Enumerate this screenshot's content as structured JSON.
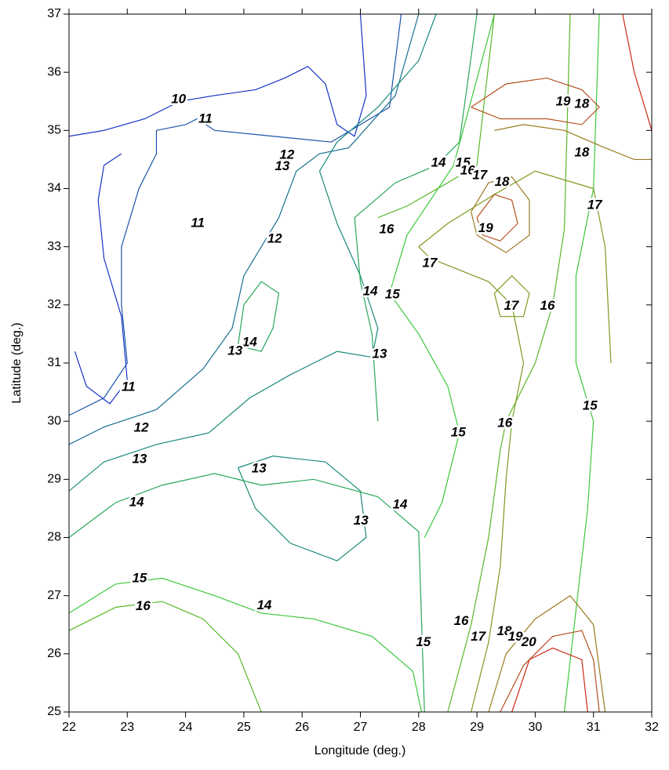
{
  "chart_data": {
    "type": "contour",
    "x_label": "Longitude (deg.)",
    "y_label": "Latitude (deg.)",
    "xlim": [
      22,
      32
    ],
    "ylim": [
      25,
      37
    ],
    "xticks": [
      22,
      23,
      24,
      25,
      26,
      27,
      28,
      29,
      30,
      31,
      32
    ],
    "yticks": [
      25,
      26,
      27,
      28,
      29,
      30,
      31,
      32,
      33,
      34,
      35,
      36,
      37
    ],
    "contours": [
      {
        "level": 10,
        "color": "#1833c4",
        "x": [
          22,
          22.6,
          23.3,
          23.9,
          24.5,
          25.2,
          25.7,
          26.1,
          26.4,
          26.6,
          26.9,
          27.1,
          27.0
        ],
        "y": [
          34.9,
          35.0,
          35.2,
          35.5,
          35.6,
          35.7,
          35.9,
          36.1,
          35.8,
          35.1,
          34.9,
          35.6,
          37
        ]
      },
      {
        "level": 10,
        "color": "#1833c4",
        "x": [
          22.1,
          22.3,
          22.7,
          23.0,
          22.9,
          22.6,
          22.5,
          22.6,
          22.9
        ],
        "y": [
          31.2,
          30.6,
          30.3,
          30.7,
          31.8,
          32.8,
          33.8,
          34.4,
          34.6
        ]
      },
      {
        "level": 11,
        "color": "#1a55ad",
        "x": [
          22,
          22.6,
          23.0,
          22.9,
          22.9,
          23.2,
          23.5,
          23.5,
          24.0,
          24.2,
          24.5,
          25.5,
          26.5,
          27.5,
          27.7
        ],
        "y": [
          30.1,
          30.4,
          31.0,
          32.0,
          33.0,
          34.0,
          34.6,
          35.0,
          35.1,
          35.2,
          35.0,
          34.9,
          34.8,
          35.4,
          37
        ]
      },
      {
        "level": 12,
        "color": "#1a7094",
        "x": [
          22,
          22.6,
          23.5,
          24.3,
          24.8,
          25.0,
          25.3,
          25.6,
          25.9,
          26.3,
          26.8,
          27.6,
          28.0
        ],
        "y": [
          29.6,
          29.9,
          30.2,
          30.9,
          31.6,
          32.5,
          33.0,
          33.5,
          34.3,
          34.6,
          34.7,
          35.6,
          37
        ]
      },
      {
        "level": 13,
        "color": "#1a8a7a",
        "x": [
          22,
          22.6,
          23.5,
          24.4,
          25.1,
          25.8,
          26.6,
          27.2,
          27.3,
          27.0,
          26.6,
          26.3,
          26.6,
          27.3,
          28.0,
          28.3
        ],
        "y": [
          28.8,
          29.3,
          29.6,
          29.8,
          30.4,
          30.8,
          31.2,
          31.1,
          31.6,
          32.5,
          33.4,
          34.3,
          34.8,
          35.4,
          36.2,
          37
        ]
      },
      {
        "level": 13,
        "color": "#1a8a7a",
        "x": [
          24.9,
          25.5,
          26.4,
          27.0,
          27.1,
          26.6,
          25.8,
          25.2,
          24.9
        ],
        "y": [
          29.2,
          29.4,
          29.3,
          28.8,
          28.0,
          27.6,
          27.9,
          28.5,
          29.2
        ]
      },
      {
        "level": 14,
        "color": "#28a85a",
        "x": [
          22,
          22.8,
          23.6,
          24.5,
          25.3,
          26.2,
          27.3,
          28.0,
          28.1
        ],
        "y": [
          28.0,
          28.6,
          28.9,
          29.1,
          28.9,
          29.0,
          28.7,
          28.1,
          25.0
        ]
      },
      {
        "level": 14,
        "color": "#28a85a",
        "x": [
          27.3,
          27.2,
          27.0,
          26.9,
          27.6,
          28.3,
          28.7,
          29.0
        ],
        "y": [
          30.0,
          31.5,
          32.4,
          33.5,
          34.1,
          34.4,
          34.8,
          37
        ]
      },
      {
        "level": 14,
        "color": "#28a85a",
        "x": [
          24.9,
          25.3,
          25.5,
          25.6,
          25.3,
          25.0,
          24.9
        ],
        "y": [
          31.3,
          31.2,
          31.6,
          32.2,
          32.4,
          32.0,
          31.3
        ]
      },
      {
        "level": 15,
        "color": "#3cc83c",
        "x": [
          22,
          22.8,
          23.6,
          24.5,
          25.3,
          26.2,
          27.2,
          27.9,
          28.05
        ],
        "y": [
          26.7,
          27.2,
          27.3,
          27.0,
          26.7,
          26.6,
          26.3,
          25.7,
          25.0
        ]
      },
      {
        "level": 15,
        "color": "#3cc83c",
        "x": [
          28.1,
          28.4,
          28.7,
          28.5,
          28.0,
          27.5,
          27.8,
          28.6,
          29.3
        ],
        "y": [
          28.0,
          28.6,
          29.8,
          30.6,
          31.5,
          32.2,
          33.2,
          34.4,
          37
        ]
      },
      {
        "level": 15,
        "color": "#3cc83c",
        "x": [
          30.5,
          30.9,
          31.0,
          30.7,
          30.7,
          31.0,
          31.1
        ],
        "y": [
          25.0,
          28.5,
          30.0,
          31.0,
          32.5,
          34.0,
          37
        ]
      },
      {
        "level": 16,
        "color": "#5ab828",
        "x": [
          22,
          22.8,
          23.6,
          24.3,
          24.9,
          25.3
        ],
        "y": [
          26.4,
          26.8,
          26.9,
          26.6,
          26.0,
          25.0
        ]
      },
      {
        "level": 16,
        "color": "#5ab828",
        "x": [
          28.5,
          28.9,
          29.2,
          29.4,
          29.5,
          30.0,
          30.3,
          30.5,
          30.6
        ],
        "y": [
          25.0,
          26.5,
          28.0,
          29.5,
          30.0,
          31.0,
          32.0,
          33.3,
          37
        ]
      },
      {
        "level": 16,
        "color": "#5ab828",
        "x": [
          27.3,
          27.8,
          28.5,
          29.0,
          29.3
        ],
        "y": [
          33.5,
          33.7,
          34.1,
          34.4,
          37
        ]
      },
      {
        "level": 17,
        "color": "#7a9a1e",
        "x": [
          28.9,
          29.2,
          29.4,
          29.5,
          29.6,
          29.8,
          29.6,
          29.2,
          28.7,
          28.2,
          28.0,
          28.5,
          29.3,
          30.0,
          31.0,
          31.2,
          31.3
        ],
        "y": [
          25.0,
          26.2,
          27.5,
          29.0,
          30.0,
          31.0,
          32.0,
          32.4,
          32.6,
          32.8,
          33.0,
          33.4,
          33.9,
          34.3,
          34.0,
          33.0,
          31.0
        ]
      },
      {
        "level": 17,
        "color": "#7a9a1e",
        "x": [
          29.4,
          29.8,
          29.9,
          29.6,
          29.3,
          29.4
        ],
        "y": [
          31.8,
          31.8,
          32.2,
          32.5,
          32.2,
          31.8
        ]
      },
      {
        "level": 18,
        "color": "#9a7a1e",
        "x": [
          28.9,
          29.2,
          29.6,
          29.9,
          29.9,
          29.5,
          29.0,
          28.9
        ],
        "y": [
          33.6,
          34.1,
          34.2,
          33.8,
          33.2,
          32.9,
          33.2,
          33.6
        ]
      },
      {
        "level": 18,
        "color": "#9a7a1e",
        "x": [
          29.3,
          29.8,
          30.5,
          31.2,
          31.7,
          32.0
        ],
        "y": [
          35.0,
          35.1,
          35.0,
          34.7,
          34.5,
          34.5
        ]
      },
      {
        "level": 18,
        "color": "#9a7a1e",
        "x": [
          29.2,
          29.5,
          30.0,
          30.6,
          31.0,
          31.2
        ],
        "y": [
          25.0,
          26.0,
          26.6,
          27.0,
          26.5,
          25.0
        ]
      },
      {
        "level": 19,
        "color": "#b4501e",
        "x": [
          29.0,
          29.3,
          29.6,
          29.7,
          29.4,
          29.1,
          29.0
        ],
        "y": [
          33.5,
          33.9,
          33.8,
          33.4,
          33.1,
          33.2,
          33.5
        ]
      },
      {
        "level": 19,
        "color": "#b4501e",
        "x": [
          28.9,
          29.5,
          30.2,
          30.8,
          31.1,
          30.8,
          30.2,
          29.4,
          28.9
        ],
        "y": [
          35.4,
          35.8,
          35.9,
          35.7,
          35.4,
          35.1,
          35.2,
          35.2,
          35.4
        ]
      },
      {
        "level": 19,
        "color": "#b4501e",
        "x": [
          29.4,
          29.8,
          30.3,
          30.8,
          31.0,
          31.1
        ],
        "y": [
          25.0,
          25.8,
          26.3,
          26.4,
          25.9,
          25.0
        ]
      },
      {
        "level": 20,
        "color": "#cc2a14",
        "x": [
          29.6,
          29.9,
          30.3,
          30.8,
          30.9
        ],
        "y": [
          25.0,
          25.9,
          26.1,
          25.9,
          25.0
        ]
      },
      {
        "level": 20,
        "color": "#cc2a14",
        "x": [
          31.5,
          31.7,
          32.0
        ],
        "y": [
          37,
          36.0,
          35.0
        ]
      }
    ],
    "contour_labels": [
      {
        "level": 10,
        "x": 23.88,
        "y": 35.53
      },
      {
        "level": 11,
        "x": 24.34,
        "y": 35.19
      },
      {
        "level": 12,
        "x": 25.74,
        "y": 34.57
      },
      {
        "level": 13,
        "x": 25.66,
        "y": 34.38
      },
      {
        "level": 11,
        "x": 24.21,
        "y": 33.4
      },
      {
        "level": 12,
        "x": 25.53,
        "y": 33.13
      },
      {
        "level": 14,
        "x": 28.34,
        "y": 34.44
      },
      {
        "level": 15,
        "x": 28.76,
        "y": 34.44
      },
      {
        "level": 16,
        "x": 28.84,
        "y": 34.3
      },
      {
        "level": 17,
        "x": 29.05,
        "y": 34.22
      },
      {
        "level": 18,
        "x": 29.43,
        "y": 34.11
      },
      {
        "level": 19,
        "x": 30.48,
        "y": 35.49
      },
      {
        "level": 18,
        "x": 30.8,
        "y": 35.45
      },
      {
        "level": 18,
        "x": 30.8,
        "y": 34.61
      },
      {
        "level": 17,
        "x": 31.02,
        "y": 33.71
      },
      {
        "level": 16,
        "x": 27.45,
        "y": 33.29
      },
      {
        "level": 19,
        "x": 29.15,
        "y": 33.31
      },
      {
        "level": 17,
        "x": 28.19,
        "y": 32.71
      },
      {
        "level": 14,
        "x": 27.17,
        "y": 32.23
      },
      {
        "level": 15,
        "x": 27.55,
        "y": 32.17
      },
      {
        "level": 17,
        "x": 29.59,
        "y": 31.98
      },
      {
        "level": 16,
        "x": 30.21,
        "y": 31.98
      },
      {
        "level": 14,
        "x": 25.1,
        "y": 31.35
      },
      {
        "level": 13,
        "x": 24.85,
        "y": 31.2
      },
      {
        "level": 13,
        "x": 27.33,
        "y": 31.15
      },
      {
        "level": 11,
        "x": 23.02,
        "y": 30.58
      },
      {
        "level": 15,
        "x": 30.94,
        "y": 30.26
      },
      {
        "level": 16,
        "x": 29.48,
        "y": 29.96
      },
      {
        "level": 15,
        "x": 28.68,
        "y": 29.8
      },
      {
        "level": 12,
        "x": 23.24,
        "y": 29.88
      },
      {
        "level": 13,
        "x": 23.21,
        "y": 29.34
      },
      {
        "level": 13,
        "x": 25.26,
        "y": 29.18
      },
      {
        "level": 14,
        "x": 23.16,
        "y": 28.6
      },
      {
        "level": 14,
        "x": 27.68,
        "y": 28.56
      },
      {
        "level": 13,
        "x": 27.01,
        "y": 28.28
      },
      {
        "level": 15,
        "x": 23.21,
        "y": 27.29
      },
      {
        "level": 16,
        "x": 23.27,
        "y": 26.81
      },
      {
        "level": 14,
        "x": 25.35,
        "y": 26.83
      },
      {
        "level": 16,
        "x": 28.73,
        "y": 26.56
      },
      {
        "level": 17,
        "x": 29.02,
        "y": 26.29
      },
      {
        "level": 18,
        "x": 29.47,
        "y": 26.38
      },
      {
        "level": 19,
        "x": 29.66,
        "y": 26.29
      },
      {
        "level": 20,
        "x": 29.89,
        "y": 26.19
      },
      {
        "level": 15,
        "x": 28.08,
        "y": 26.19
      }
    ]
  }
}
